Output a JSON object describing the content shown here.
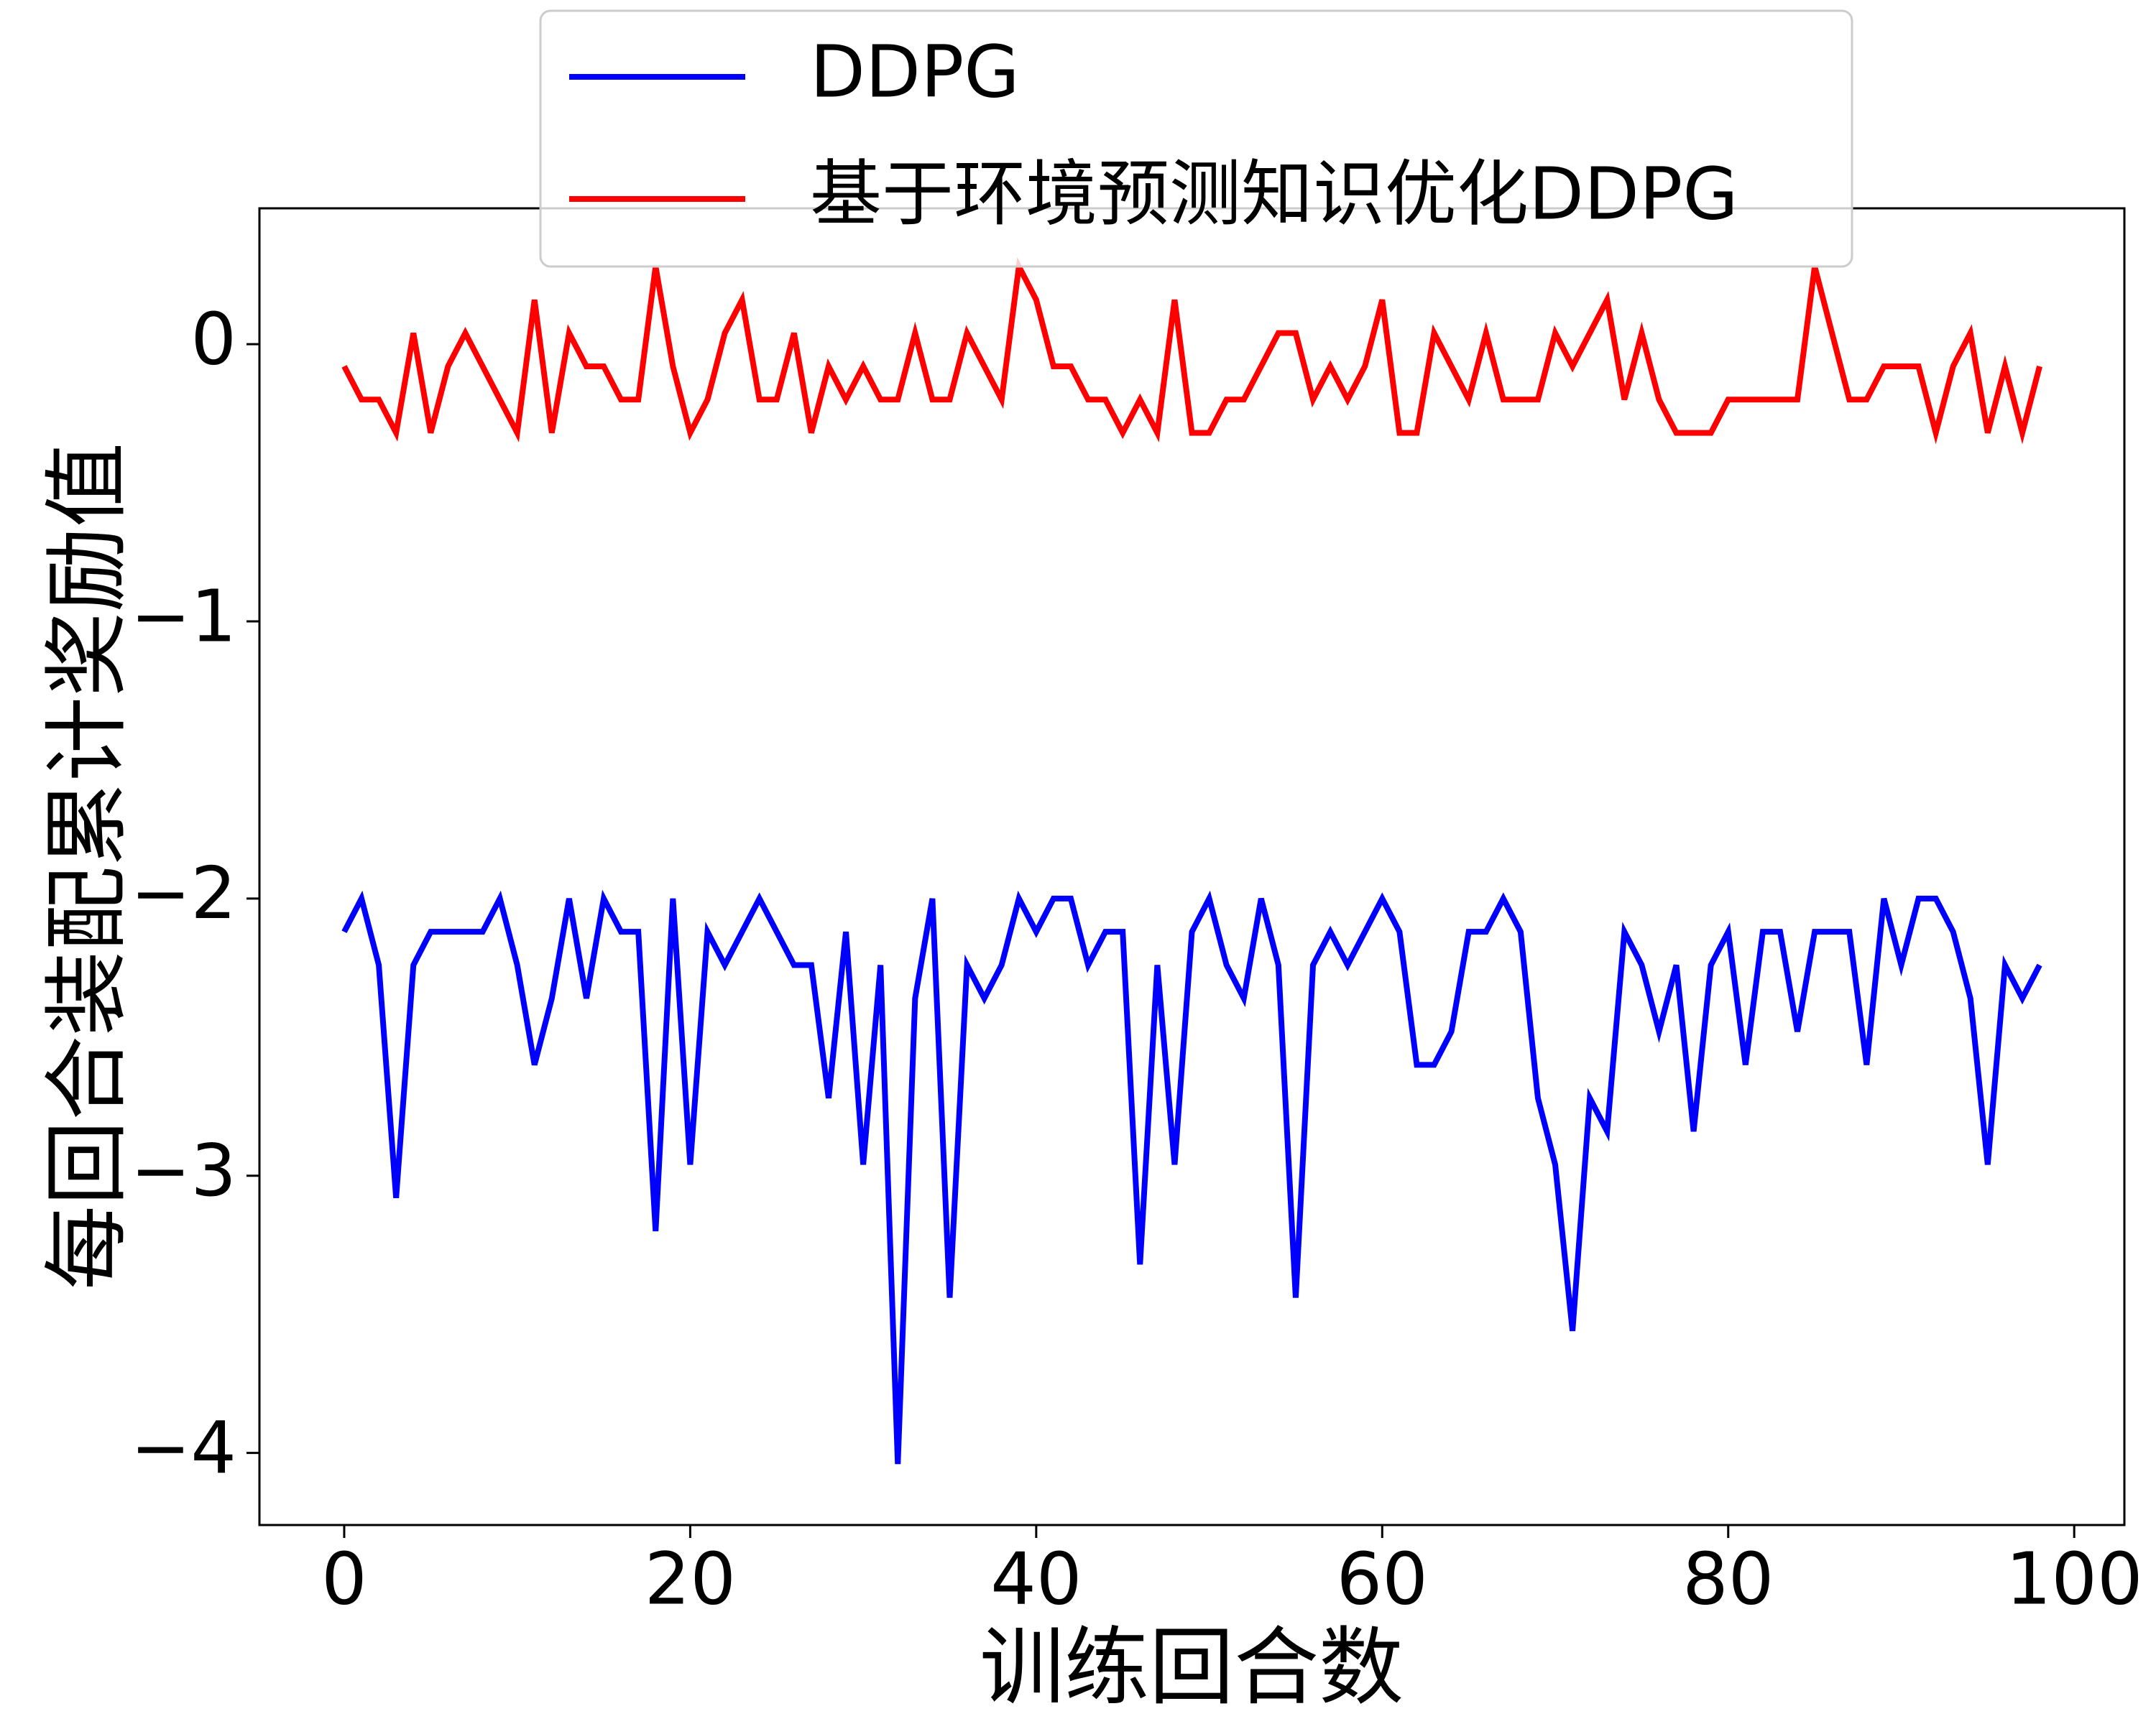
{
  "chart_data": {
    "type": "line",
    "x_label": "训练回合数",
    "y_label": "每回合装配累计奖励值",
    "x": [
      0,
      1,
      2,
      3,
      4,
      5,
      6,
      7,
      8,
      9,
      10,
      11,
      12,
      13,
      14,
      15,
      16,
      17,
      18,
      19,
      20,
      21,
      22,
      23,
      24,
      25,
      26,
      27,
      28,
      29,
      30,
      31,
      32,
      33,
      34,
      35,
      36,
      37,
      38,
      39,
      40,
      41,
      42,
      43,
      44,
      45,
      46,
      47,
      48,
      49,
      50,
      51,
      52,
      53,
      54,
      55,
      56,
      57,
      58,
      59,
      60,
      61,
      62,
      63,
      64,
      65,
      66,
      67,
      68,
      69,
      70,
      71,
      72,
      73,
      74,
      75,
      76,
      77,
      78,
      79,
      80,
      81,
      82,
      83,
      84,
      85,
      86,
      87,
      88,
      89,
      90,
      91,
      92,
      93,
      94,
      95,
      96,
      97,
      98
    ],
    "series": [
      {
        "name": "DDPG",
        "color": "#0000ff",
        "values": [
          -2.12,
          -2.0,
          -2.24,
          -3.08,
          -2.24,
          -2.12,
          -2.12,
          -2.12,
          -2.12,
          -2.0,
          -2.24,
          -2.6,
          -2.36,
          -2.0,
          -2.36,
          -2.0,
          -2.12,
          -2.12,
          -3.2,
          -2.0,
          -2.96,
          -2.12,
          -2.24,
          -2.12,
          -2.0,
          -2.12,
          -2.24,
          -2.24,
          -2.72,
          -2.12,
          -2.96,
          -2.24,
          -4.04,
          -2.36,
          -2.0,
          -3.44,
          -2.24,
          -2.36,
          -2.24,
          -2.0,
          -2.12,
          -2.0,
          -2.0,
          -2.24,
          -2.12,
          -2.12,
          -3.32,
          -2.24,
          -2.96,
          -2.12,
          -2.0,
          -2.24,
          -2.36,
          -2.0,
          -2.24,
          -3.44,
          -2.24,
          -2.12,
          -2.24,
          -2.12,
          -2.0,
          -2.12,
          -2.6,
          -2.6,
          -2.48,
          -2.12,
          -2.12,
          -2.0,
          -2.12,
          -2.72,
          -2.96,
          -3.56,
          -2.72,
          -2.84,
          -2.12,
          -2.24,
          -2.48,
          -2.24,
          -2.84,
          -2.24,
          -2.12,
          -2.6,
          -2.12,
          -2.12,
          -2.48,
          -2.12,
          -2.12,
          -2.12,
          -2.6,
          -2.0,
          -2.24,
          -2.0,
          -2.0,
          -2.12,
          -2.36,
          -2.96,
          -2.24,
          -2.36,
          -2.24
        ]
      },
      {
        "name": "基于环境预测知识优化DDPG",
        "color": "#ff0000",
        "values": [
          -0.08,
          -0.2,
          -0.2,
          -0.32,
          0.04,
          -0.32,
          -0.08,
          0.04,
          -0.08,
          -0.2,
          -0.32,
          0.16,
          -0.32,
          0.04,
          -0.08,
          -0.08,
          -0.2,
          -0.2,
          0.28,
          -0.08,
          -0.32,
          -0.2,
          0.04,
          0.16,
          -0.2,
          -0.2,
          0.04,
          -0.32,
          -0.08,
          -0.2,
          -0.08,
          -0.2,
          -0.2,
          0.04,
          -0.2,
          -0.2,
          0.04,
          -0.08,
          -0.2,
          0.28,
          0.16,
          -0.08,
          -0.08,
          -0.2,
          -0.2,
          -0.32,
          -0.2,
          -0.32,
          0.16,
          -0.32,
          -0.32,
          -0.2,
          -0.2,
          -0.08,
          0.04,
          0.04,
          -0.2,
          -0.08,
          -0.2,
          -0.08,
          0.16,
          -0.32,
          -0.32,
          0.04,
          -0.08,
          -0.2,
          0.04,
          -0.2,
          -0.2,
          -0.2,
          0.04,
          -0.08,
          0.04,
          0.16,
          -0.2,
          0.04,
          -0.2,
          -0.32,
          -0.32,
          -0.32,
          -0.2,
          -0.2,
          -0.2,
          -0.2,
          -0.2,
          0.28,
          0.04,
          -0.2,
          -0.2,
          -0.08,
          -0.08,
          -0.08,
          -0.32,
          -0.08,
          0.04,
          -0.32,
          -0.08,
          -0.32,
          -0.08
        ]
      }
    ],
    "xlim": [
      -4.9,
      102.9
    ],
    "ylim": [
      -4.26,
      0.49
    ],
    "xticks": [
      0,
      20,
      40,
      60,
      80,
      100
    ],
    "yticks": [
      0,
      {
        "value": -1,
        "label": "−1"
      },
      {
        "value": -2,
        "label": "−2"
      },
      {
        "value": -3,
        "label": "−3"
      },
      {
        "value": -4,
        "label": "−4"
      }
    ],
    "legend": "upper center",
    "grid": false
  }
}
